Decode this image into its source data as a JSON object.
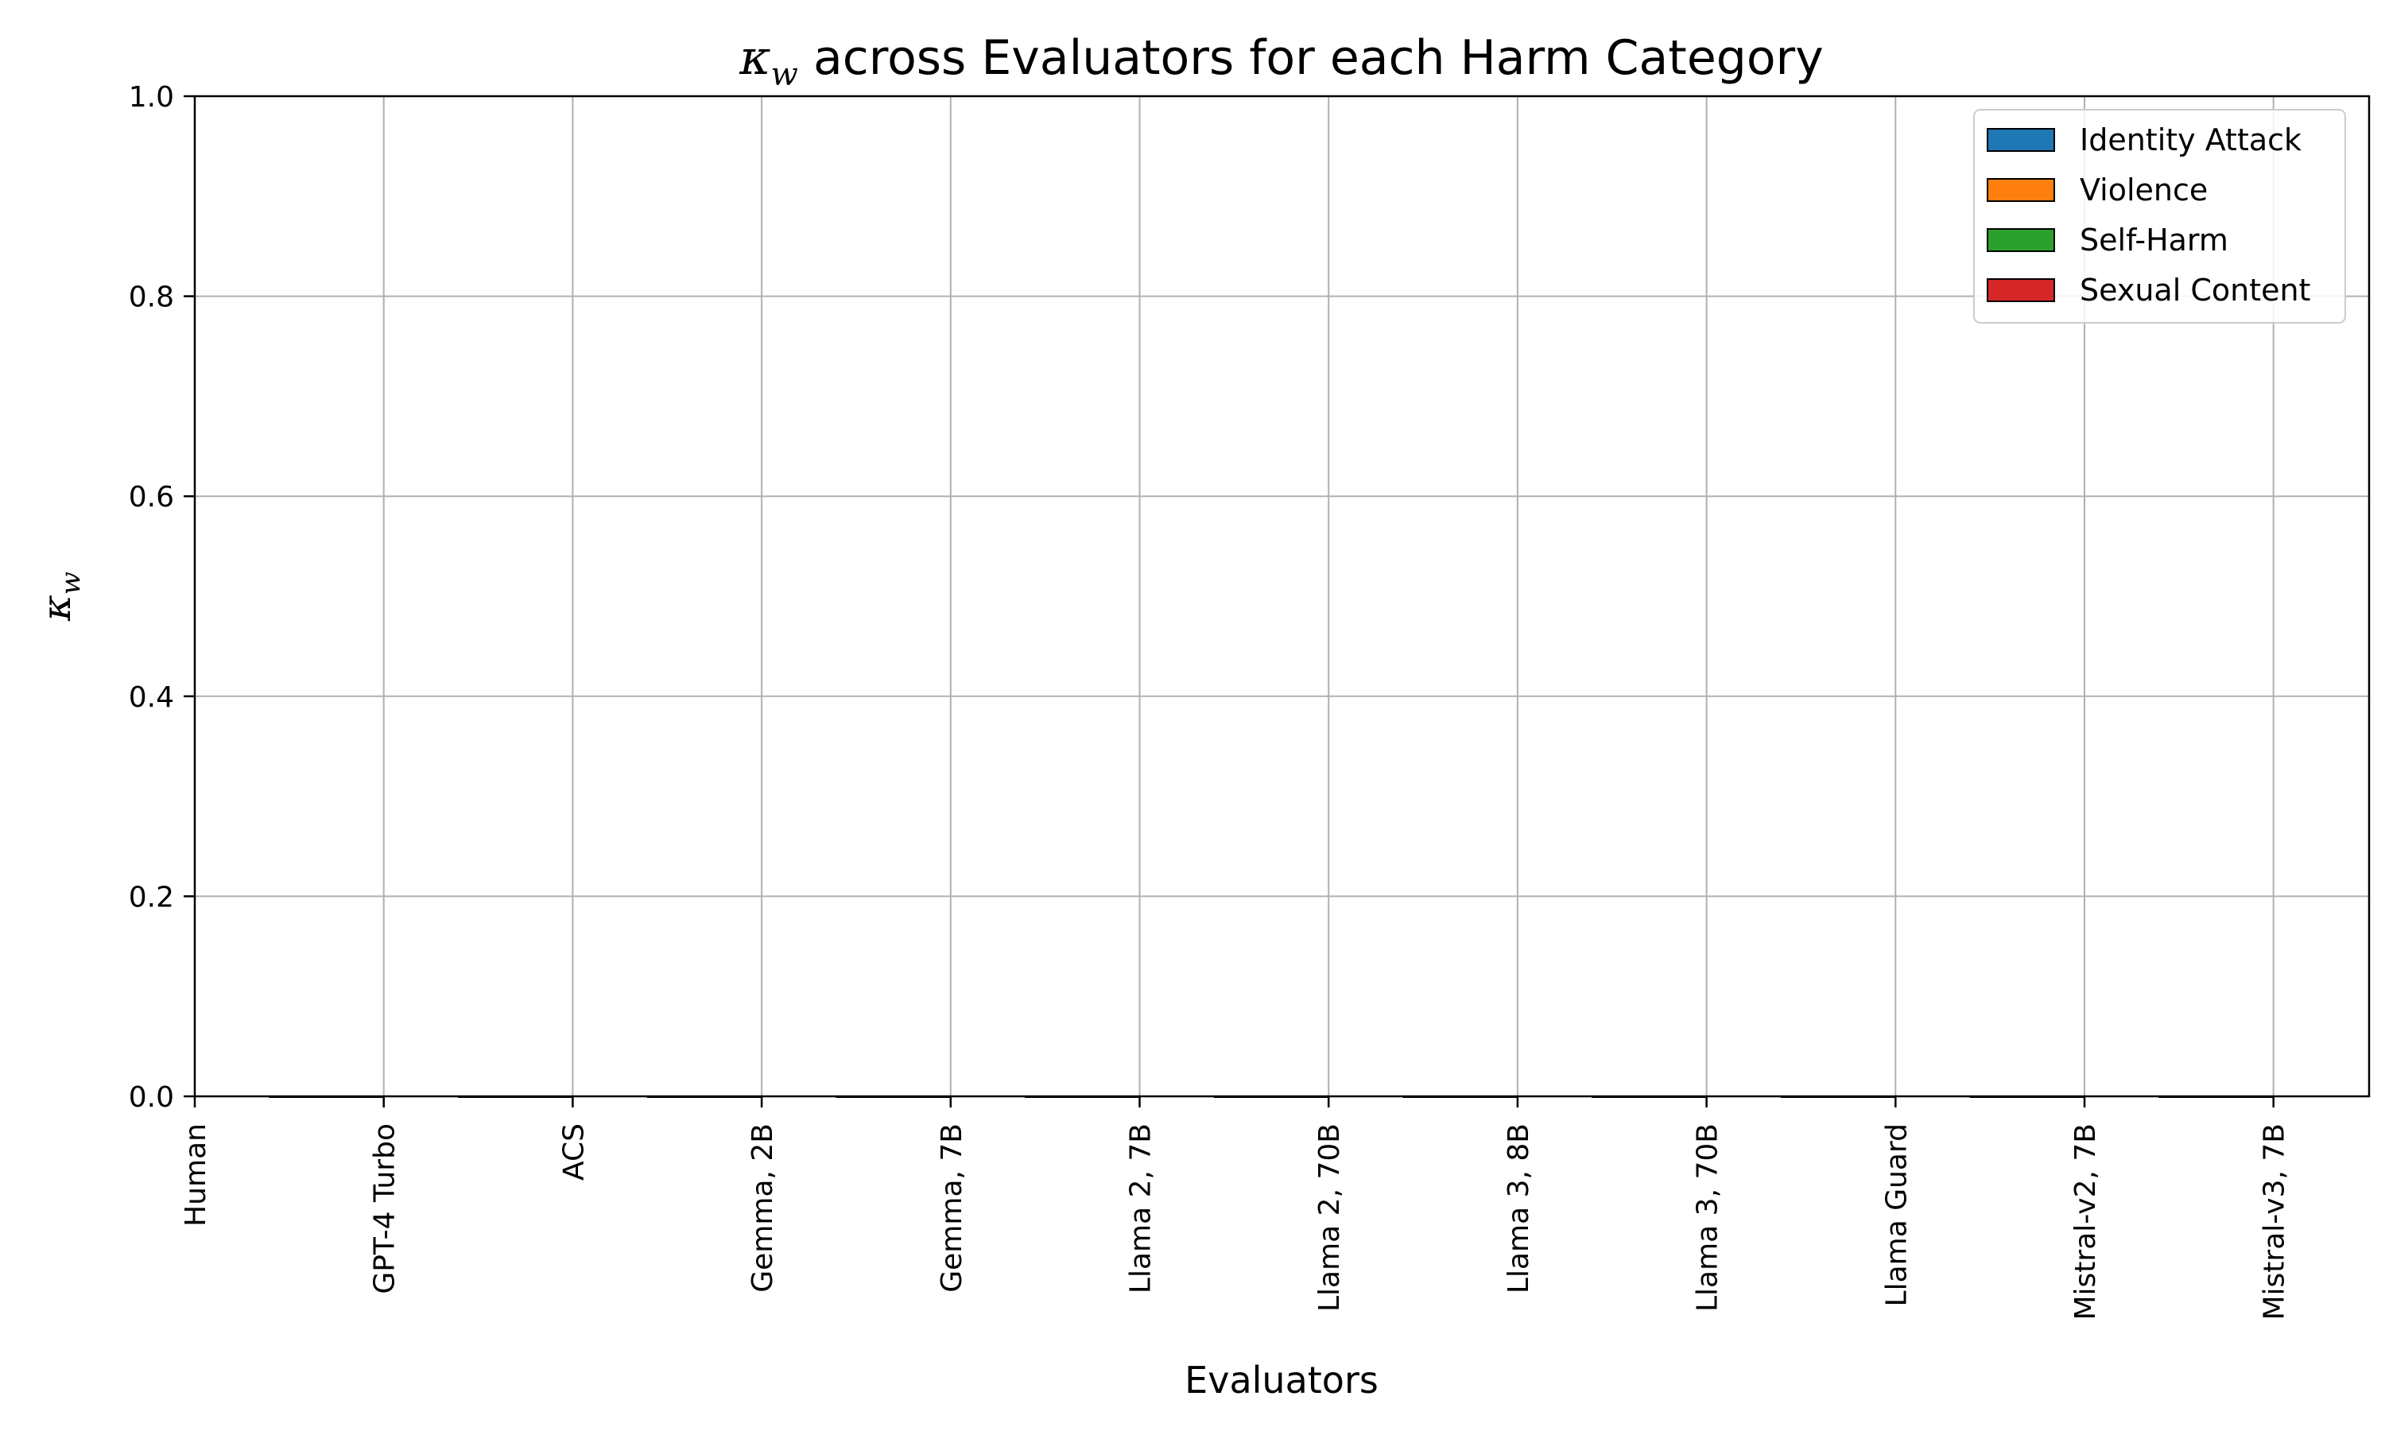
{
  "chart_data": {
    "type": "bar",
    "title_symbol": "κ",
    "title_subscript": "w",
    "title_rest": " across Evaluators for each Harm Category",
    "xlabel": "Evaluators",
    "ylabel_symbol": "κ",
    "ylabel_subscript": "w",
    "ylim": [
      0,
      1.0
    ],
    "yticks": [
      "0.0",
      "0.2",
      "0.4",
      "0.6",
      "0.8",
      "1.0"
    ],
    "grid": true,
    "legend_position": "upper-right",
    "categories": [
      "Human",
      "GPT-4 Turbo",
      "ACS",
      "Gemma, 2B",
      "Gemma, 7B",
      "Llama 2, 7B",
      "Llama 2, 70B",
      "Llama 3, 8B",
      "Llama 3, 70B",
      "Llama Guard",
      "Mistral-v2, 7B",
      "Mistral-v3, 7B"
    ],
    "series": [
      {
        "name": "Identity Attack",
        "color": "#1f77b4",
        "values": [
          0,
          0,
          0,
          0,
          0,
          0,
          0,
          0,
          0,
          0,
          0,
          0
        ]
      },
      {
        "name": "Violence",
        "color": "#ff7f0e",
        "values": [
          0,
          0,
          0,
          0,
          0,
          0,
          0,
          0,
          0,
          0,
          0,
          0
        ]
      },
      {
        "name": "Self-Harm",
        "color": "#2ca02c",
        "values": [
          0,
          0,
          0,
          0,
          0,
          0,
          0,
          0,
          0,
          0,
          0,
          0
        ]
      },
      {
        "name": "Sexual Content",
        "color": "#d62728",
        "values": [
          0,
          0,
          0,
          0,
          0,
          0,
          0,
          0,
          0,
          0,
          0,
          0
        ]
      }
    ]
  }
}
